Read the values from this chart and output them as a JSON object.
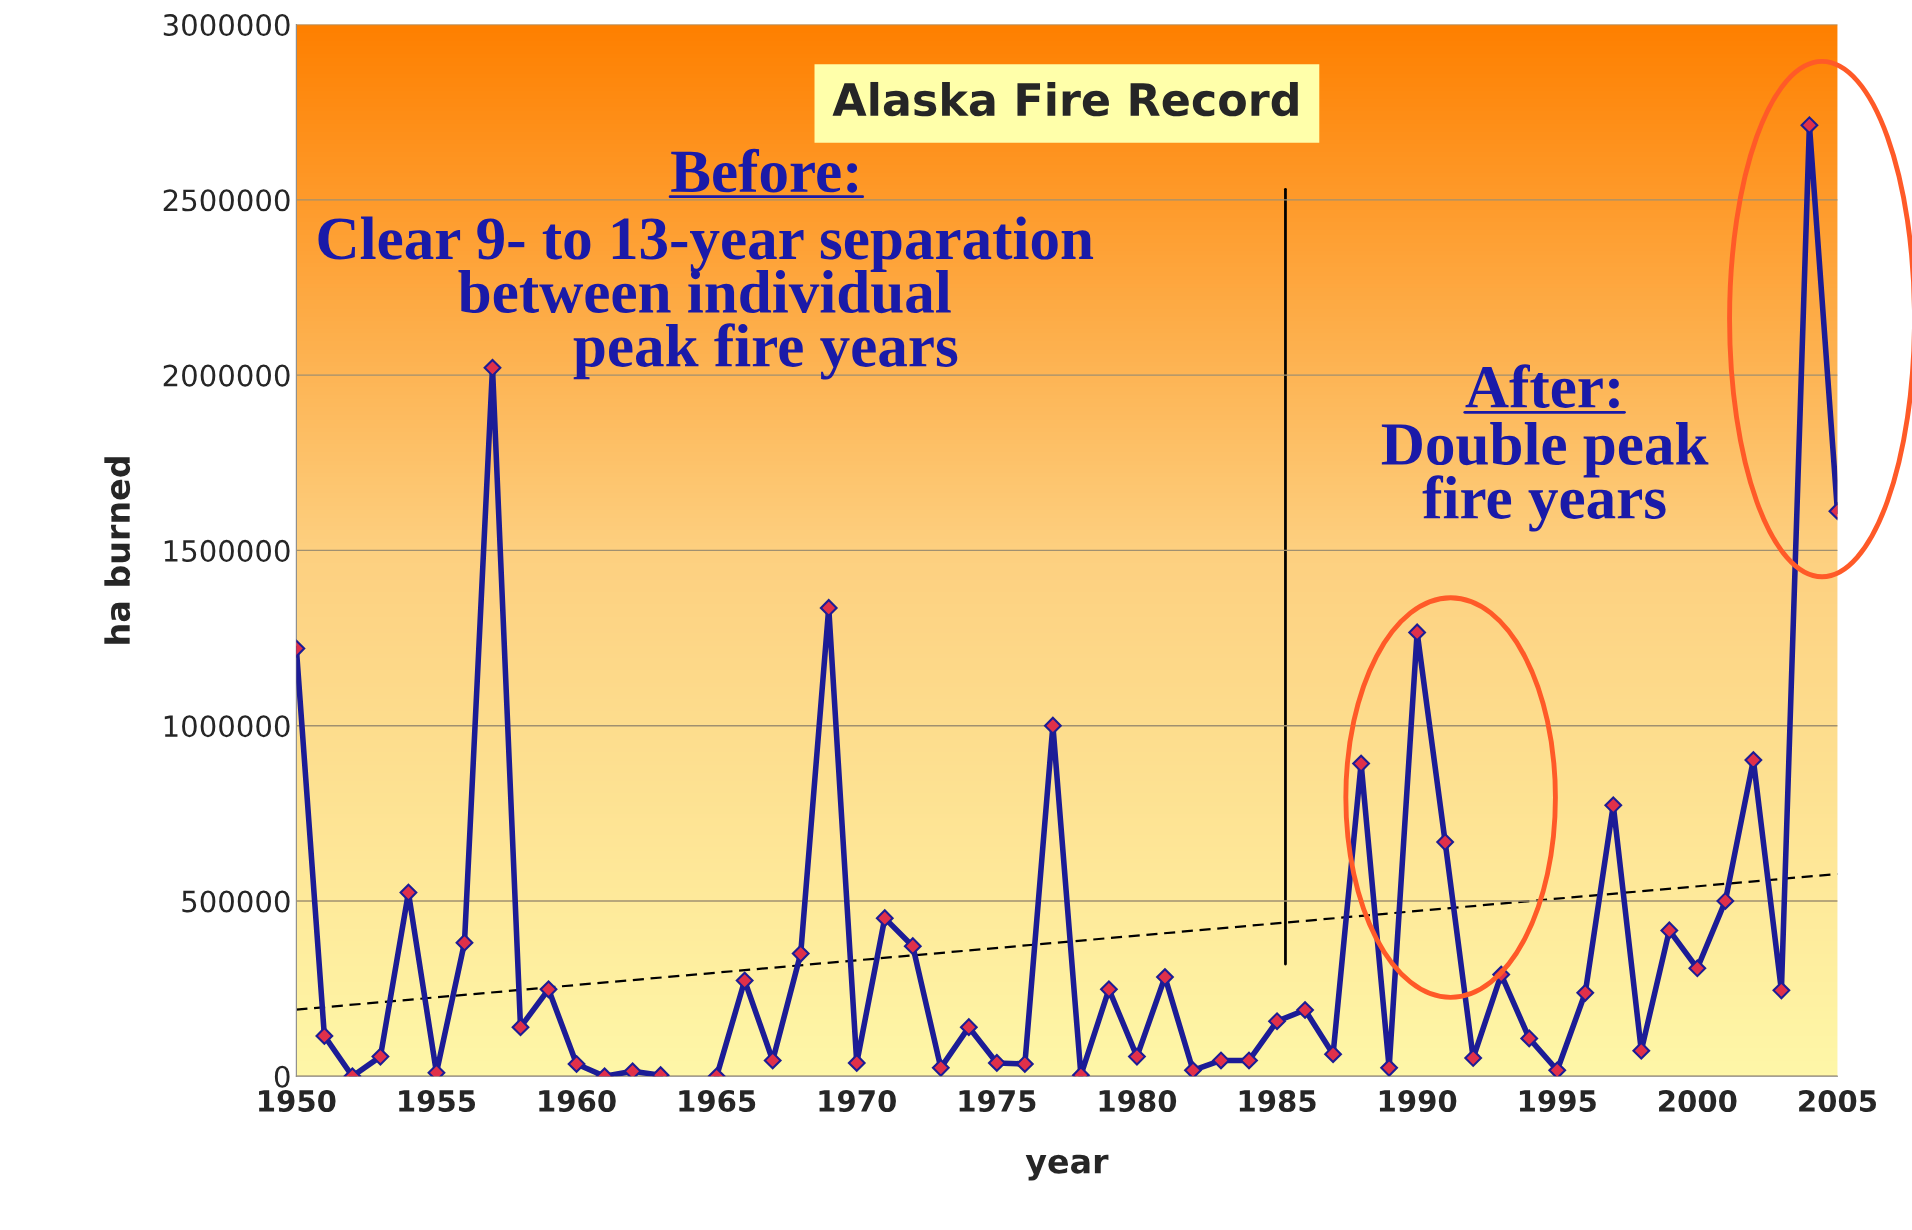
{
  "chart_data": {
    "type": "line",
    "title": "Alaska Fire Record",
    "xlabel": "year",
    "ylabel": "ha burned",
    "x": [
      1950,
      1951,
      1952,
      1953,
      1954,
      1955,
      1956,
      1957,
      1958,
      1959,
      1960,
      1961,
      1962,
      1963,
      1964,
      1965,
      1966,
      1967,
      1968,
      1969,
      1970,
      1971,
      1972,
      1973,
      1974,
      1975,
      1976,
      1977,
      1978,
      1979,
      1980,
      1981,
      1982,
      1983,
      1984,
      1985,
      1986,
      1987,
      1988,
      1989,
      1990,
      1991,
      1992,
      1993,
      1994,
      1995,
      1996,
      1997,
      1998,
      1999,
      2000,
      2001,
      2002,
      2003,
      2004,
      2005
    ],
    "series": [
      {
        "color": "#1c1c96",
        "marker": "diamond",
        "line_style": "solid",
        "values": [
          1220000,
          115000,
          0,
          56000,
          524000,
          10000,
          381000,
          2021000,
          140000,
          248000,
          35000,
          0,
          14000,
          3000,
          null,
          0,
          273000,
          45000,
          350000,
          1336000,
          38000,
          451000,
          371000,
          24000,
          140000,
          38000,
          35000,
          1000000,
          3000,
          248000,
          56000,
          283000,
          17000,
          45000,
          45000,
          157000,
          189000,
          63000,
          892000,
          24000,
          1266000,
          668000,
          52000,
          290000,
          108000,
          17000,
          238000,
          773000,
          73000,
          416000,
          308000,
          500000,
          902000,
          245000,
          2713000,
          1612000
        ]
      },
      {
        "type": "line",
        "color": "#000000",
        "marker": "none",
        "line_style": "dashed",
        "x": [
          1950,
          2005
        ],
        "values": [
          190000,
          577000
        ]
      },
      {
        "type": "line",
        "color": "#000000",
        "marker": "none",
        "line_style": "solid",
        "x": [
          1985.3,
          1985.3
        ],
        "values": [
          2530000,
          320000
        ]
      }
    ],
    "annotations": [
      "Before:",
      "Clear 9- to 13-year separation\nbetween individual\n        peak fire years",
      "After:",
      "Double peak\nfire years"
    ],
    "xlim": [
      1950,
      2005
    ],
    "xticks": [
      1950,
      1955,
      1960,
      1965,
      1970,
      1975,
      1980,
      1985,
      1990,
      1995,
      2000,
      2005
    ],
    "ylim": [
      0,
      3000000
    ],
    "yticks": [
      0,
      500000,
      1000000,
      1500000,
      2000000,
      2500000,
      3000000
    ],
    "grid": "y",
    "legend": false
  }
}
